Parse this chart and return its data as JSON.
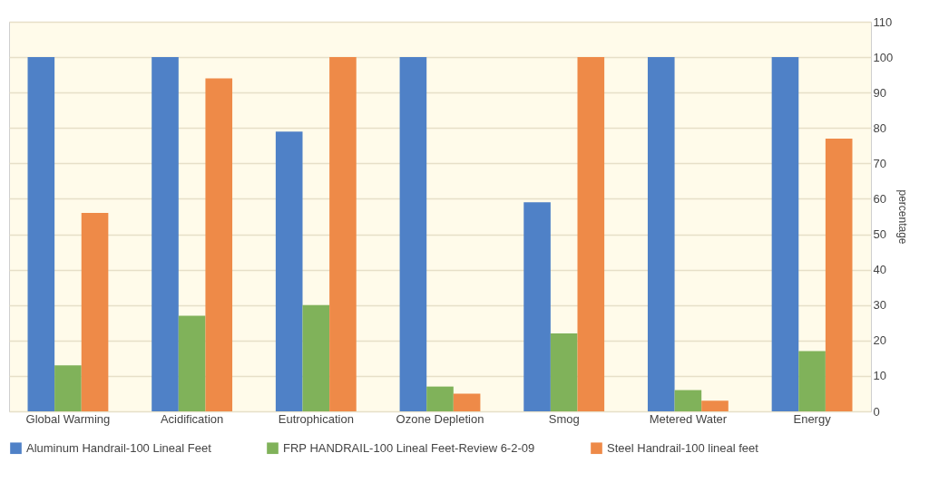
{
  "chart_data": {
    "type": "bar",
    "ylabel": "percentage",
    "categories": [
      "Global Warming",
      "Acidification",
      "Eutrophication",
      "Ozone Depletion",
      "Smog",
      "Metered Water",
      "Energy"
    ],
    "series": [
      {
        "name": "Aluminum Handrail-100 Lineal Feet",
        "color": "#4f81c7",
        "values": [
          100,
          100,
          79,
          100,
          59,
          100,
          100
        ]
      },
      {
        "name": "FRP HANDRAIL-100 Lineal Feet-Review 6-2-09",
        "color": "#80b25a",
        "values": [
          13,
          27,
          30,
          7,
          22,
          6,
          17
        ]
      },
      {
        "name": "Steel Handrail-100 lineal feet",
        "color": "#ee8a48",
        "values": [
          56,
          94,
          100,
          5,
          100,
          3,
          77
        ]
      }
    ],
    "ylim": [
      0,
      110
    ],
    "yticks": [
      0,
      10,
      20,
      30,
      40,
      50,
      60,
      70,
      80,
      90,
      100,
      110
    ],
    "grid": true,
    "legend": "bottom"
  }
}
